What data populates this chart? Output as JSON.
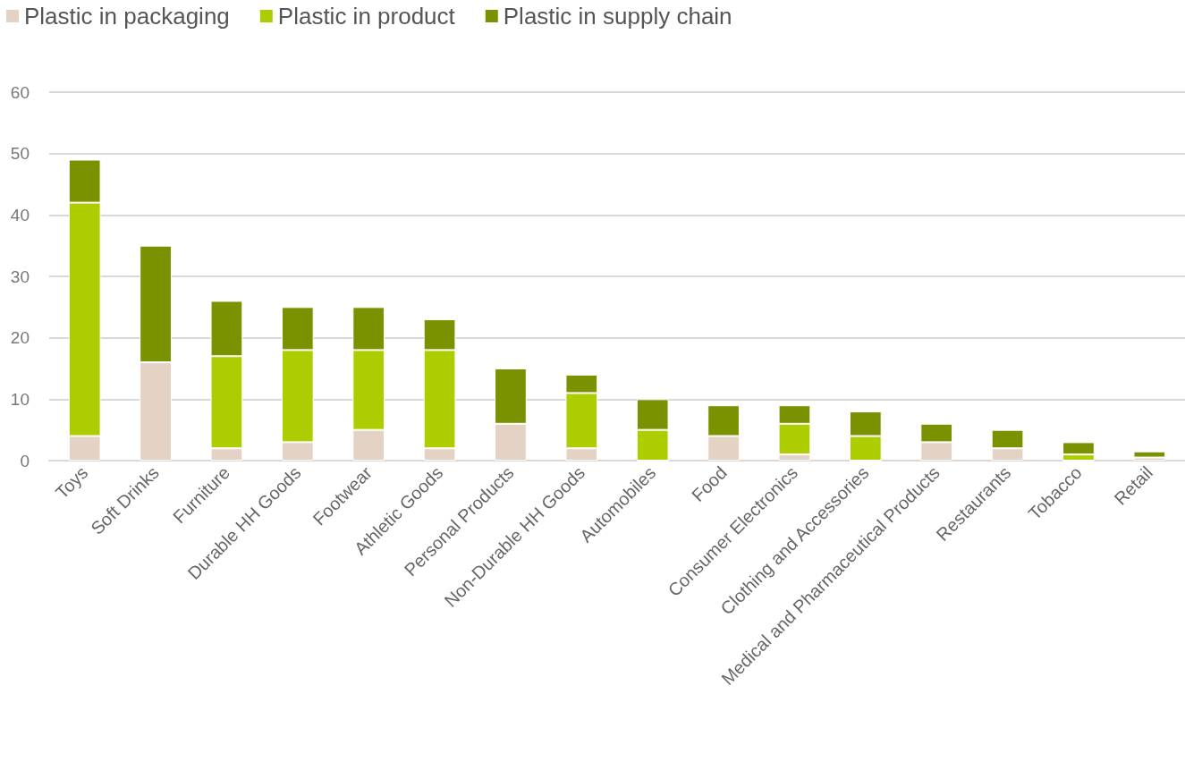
{
  "chart_data": {
    "type": "bar",
    "stacked": true,
    "categories": [
      "Toys",
      "Soft Drinks",
      "Furniture",
      "Durable HH Goods",
      "Footwear",
      "Athletic Goods",
      "Personal Products",
      "Non-Durable HH Goods",
      "Automobiles",
      "Food",
      "Consumer Electronics",
      "Clothing and Accessories",
      "Medical and Pharmaceutical Products",
      "Restaurants",
      "Tobacco",
      "Retail"
    ],
    "series": [
      {
        "name": "Plastic in packaging",
        "color": "#e4d3c5",
        "values": [
          4,
          16,
          2,
          3,
          5,
          2,
          6,
          2,
          0,
          4,
          1,
          0,
          3,
          2,
          0,
          0.5
        ]
      },
      {
        "name": "Plastic in product",
        "color": "#aecd00",
        "values": [
          38,
          0,
          15,
          15,
          13,
          16,
          0,
          9,
          5,
          0,
          5,
          4,
          0,
          0,
          1,
          0
        ]
      },
      {
        "name": "Plastic in supply chain",
        "color": "#7a9100",
        "values": [
          7,
          19,
          9,
          7,
          7,
          5,
          9,
          3,
          5,
          5,
          3,
          4,
          3,
          3,
          2,
          1
        ]
      }
    ],
    "ylim": [
      0,
      60
    ],
    "yticks": [
      0,
      10,
      20,
      30,
      40,
      50,
      60
    ],
    "grid": "y",
    "legend": "top left"
  }
}
